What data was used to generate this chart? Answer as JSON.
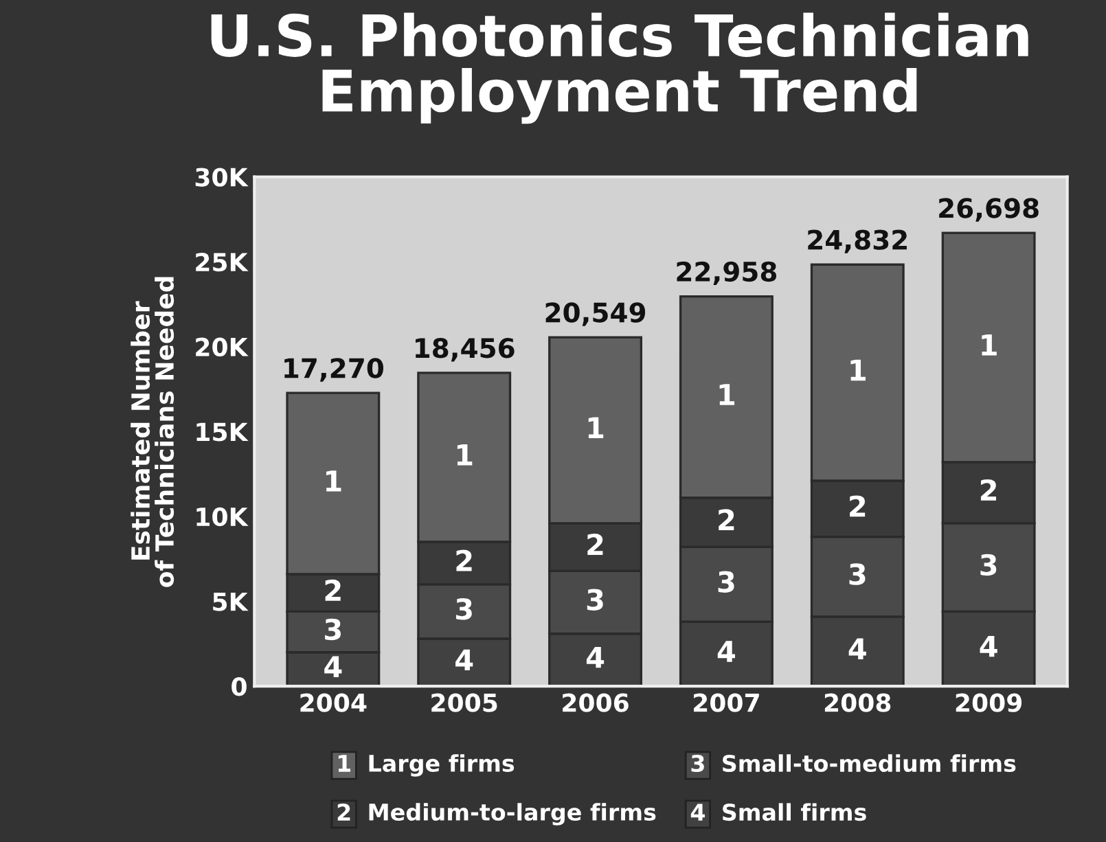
{
  "chart_data": {
    "type": "bar",
    "stacked": true,
    "title": "U.S. Photonics Technician\nEmployment Trend",
    "ylabel": "Estimated Number\nof Technicians Needed",
    "categories": [
      "2004",
      "2005",
      "2006",
      "2007",
      "2008",
      "2009"
    ],
    "series": [
      {
        "name": "Small firms",
        "color": "#414141",
        "values": [
          2000,
          2800,
          3100,
          3800,
          4100,
          4400
        ]
      },
      {
        "name": "Small-to-medium firms",
        "color": "#4a4a4a",
        "values": [
          2400,
          3200,
          3700,
          4400,
          4700,
          5200
        ]
      },
      {
        "name": "Medium-to-large firms",
        "color": "#3a3a3a",
        "values": [
          2200,
          2500,
          2800,
          2900,
          3300,
          3600
        ]
      },
      {
        "name": "Large firms",
        "color": "#616161",
        "values": [
          10670,
          9956,
          10949,
          11858,
          12732,
          13498
        ]
      }
    ],
    "annotations": [
      "4",
      "4",
      "4",
      "4",
      "4",
      "4",
      "3",
      "3",
      "3",
      "3",
      "3",
      "3",
      "2",
      "2",
      "2",
      "2",
      "2",
      "2",
      "1",
      "1",
      "1",
      "1",
      "1",
      "1"
    ],
    "totals": [
      "17,270",
      "18,456",
      "20,549",
      "22,958",
      "24,832",
      "26,698"
    ],
    "ylim": [
      0,
      30000
    ],
    "yticks": [
      0,
      {
        "value": 5000,
        "label": "5K"
      },
      {
        "value": 10000,
        "label": "10K"
      },
      {
        "value": 15000,
        "label": "15K"
      },
      {
        "value": 20000,
        "label": "20K"
      },
      {
        "value": 25000,
        "label": "25K"
      },
      {
        "value": 30000,
        "label": "30K"
      }
    ],
    "grid": false,
    "legend": "bottom"
  }
}
